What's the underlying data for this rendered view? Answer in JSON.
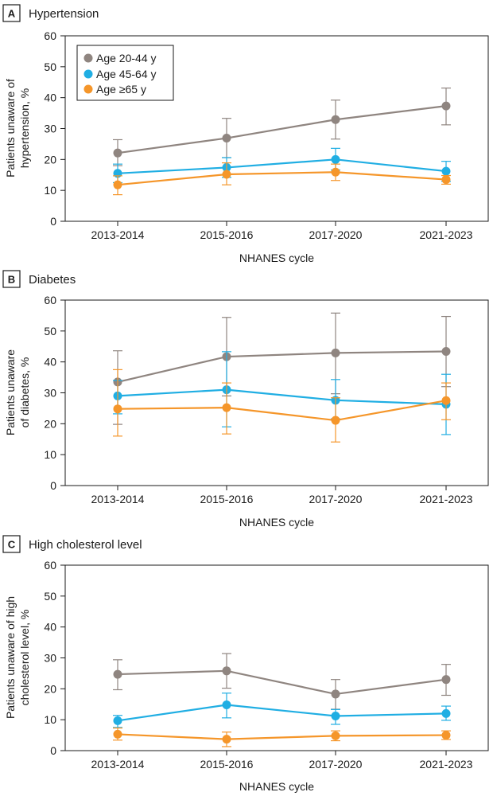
{
  "figure_legend": {
    "items": [
      {
        "label": "Age 20-44 y",
        "color": "#8f8580"
      },
      {
        "label": "Age 45-64 y",
        "color": "#20aee3"
      },
      {
        "label": "Age ≥65 y",
        "color": "#f5962a"
      }
    ]
  },
  "chart_data": [
    {
      "type": "line",
      "panel_letter": "A",
      "title": "Hypertension",
      "xlabel": "NHANES cycle",
      "ylabel_lines": [
        "Patients unaware of",
        "hypertension, %"
      ],
      "categories": [
        "2013-2014",
        "2015-2016",
        "2017-2020",
        "2021-2023"
      ],
      "ylim": [
        0,
        60
      ],
      "yticks": [
        "0",
        "10",
        "20",
        "30",
        "40",
        "50",
        "60"
      ],
      "series": [
        {
          "name": "Age 20-44 y",
          "color": "#8f8580",
          "values": [
            22.1,
            26.9,
            32.9,
            37.3
          ],
          "lower": [
            18.0,
            20.6,
            26.6,
            31.2
          ],
          "upper": [
            26.4,
            33.3,
            39.2,
            43.1
          ]
        },
        {
          "name": "Age 45-64 y",
          "color": "#20aee3",
          "values": [
            15.5,
            17.4,
            20.0,
            16.2
          ],
          "lower": [
            12.5,
            14.2,
            16.6,
            12.9
          ],
          "upper": [
            18.5,
            20.6,
            23.6,
            19.4
          ]
        },
        {
          "name": "Age ≥65 y",
          "color": "#f5962a",
          "values": [
            11.8,
            15.2,
            15.9,
            13.5
          ],
          "lower": [
            8.6,
            11.8,
            13.2,
            12.0
          ],
          "upper": [
            14.7,
            18.9,
            18.5,
            14.8
          ]
        }
      ]
    },
    {
      "type": "line",
      "panel_letter": "B",
      "title": "Diabetes",
      "xlabel": "NHANES cycle",
      "ylabel_lines": [
        "Patients unaware",
        "of diabetes, %"
      ],
      "categories": [
        "2013-2014",
        "2015-2016",
        "2017-2020",
        "2021-2023"
      ],
      "ylim": [
        0,
        60
      ],
      "yticks": [
        "0",
        "10",
        "20",
        "30",
        "40",
        "50",
        "60"
      ],
      "series": [
        {
          "name": "Age 20-44 y",
          "color": "#8f8580",
          "values": [
            33.5,
            41.7,
            42.9,
            43.4
          ],
          "lower": [
            19.8,
            29.0,
            29.7,
            32.0
          ],
          "upper": [
            43.6,
            54.4,
            55.8,
            54.7
          ]
        },
        {
          "name": "Age 45-64 y",
          "color": "#20aee3",
          "values": [
            29.0,
            31.0,
            27.6,
            26.3
          ],
          "lower": [
            23.2,
            19.0,
            21.6,
            16.5
          ],
          "upper": [
            34.0,
            43.3,
            34.3,
            36.0
          ]
        },
        {
          "name": "Age ≥65 y",
          "color": "#f5962a",
          "values": [
            24.8,
            25.2,
            21.1,
            27.5
          ],
          "lower": [
            16.0,
            16.7,
            14.1,
            21.3
          ],
          "upper": [
            37.5,
            33.2,
            28.4,
            33.2
          ]
        }
      ]
    },
    {
      "type": "line",
      "panel_letter": "C",
      "title": "High cholesterol level",
      "xlabel": "NHANES cycle",
      "ylabel_lines": [
        "Patients unaware of high",
        "cholesterol level, %"
      ],
      "categories": [
        "2013-2014",
        "2015-2016",
        "2017-2020",
        "2021-2023"
      ],
      "ylim": [
        0,
        60
      ],
      "yticks": [
        "0",
        "10",
        "20",
        "30",
        "40",
        "50",
        "60"
      ],
      "series": [
        {
          "name": "Age 20-44 y",
          "color": "#8f8580",
          "values": [
            24.7,
            25.8,
            18.3,
            23.0
          ],
          "lower": [
            19.7,
            20.2,
            13.4,
            17.9
          ],
          "upper": [
            29.4,
            31.4,
            23.0,
            27.9
          ]
        },
        {
          "name": "Age 45-64 y",
          "color": "#20aee3",
          "values": [
            9.7,
            14.8,
            11.2,
            12.0
          ],
          "lower": [
            7.5,
            10.6,
            8.5,
            9.8
          ],
          "upper": [
            11.4,
            18.6,
            13.3,
            14.4
          ]
        },
        {
          "name": "Age ≥65 y",
          "color": "#f5962a",
          "values": [
            5.3,
            3.7,
            4.8,
            5.0
          ],
          "lower": [
            3.4,
            1.3,
            3.2,
            3.6
          ],
          "upper": [
            7.3,
            6.0,
            6.4,
            6.4
          ]
        }
      ]
    }
  ]
}
